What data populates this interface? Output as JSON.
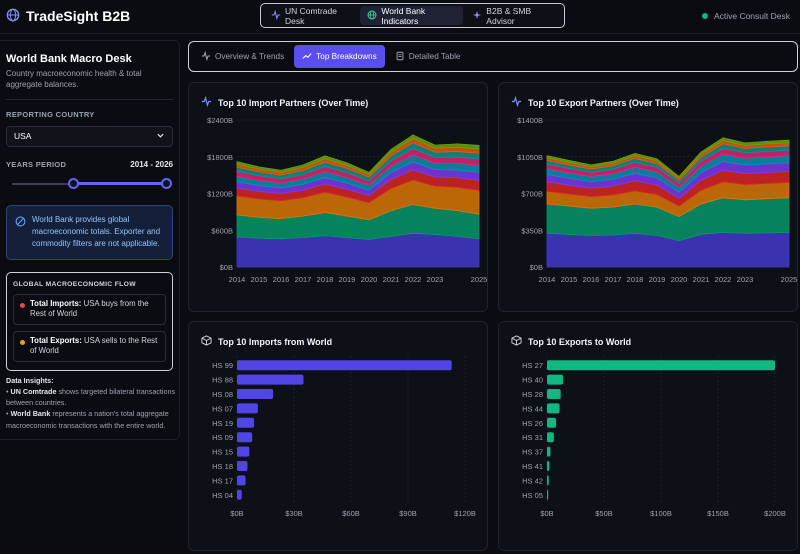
{
  "app": {
    "title": "TradeSight B2B"
  },
  "nav": [
    {
      "label": "UN Comtrade Desk",
      "icon": "pulse-icon",
      "active": false
    },
    {
      "label": "World Bank Indicators",
      "icon": "globe-icon",
      "active": true
    },
    {
      "label": "B2B & SMB Advisor",
      "icon": "sparkle-icon",
      "active": false
    }
  ],
  "status": {
    "label": "Active Consult Desk",
    "color": "#10b981"
  },
  "sidebar": {
    "title": "World Bank Macro Desk",
    "subtitle": "Country macroeconomic health & total aggregate balances.",
    "country_label": "REPORTING COUNTRY",
    "country_value": "USA",
    "period_label": "YEARS PERIOD",
    "period_value": "2014 - 2026",
    "info_text": "World Bank provides global macroeconomic totals. Exporter and commodity filters are not applicable.",
    "flow_title": "GLOBAL MACROECONOMIC FLOW",
    "flow_items": [
      {
        "bold": "Total Imports:",
        "text": " USA buys from the Rest of World",
        "color": "#ef4444"
      },
      {
        "bold": "Total Exports:",
        "text": " USA sells to the Rest of World",
        "color": "#f59e0b"
      }
    ],
    "insights_title": "Data Insights:",
    "insights": [
      {
        "bold": "UN Comtrade",
        "text": " shows targeted bilateral transactions between countries."
      },
      {
        "bold": "World Bank",
        "text": " represents a nation's total aggregate macroeconomic transactions with the entire world."
      }
    ]
  },
  "tabs": [
    {
      "label": "Overview & Trends",
      "icon": "pulse-icon",
      "active": false
    },
    {
      "label": "Top Breakdowns",
      "icon": "trend-icon",
      "active": true
    },
    {
      "label": "Detailed Table",
      "icon": "document-icon",
      "active": false
    }
  ],
  "colors": {
    "accent": "#5b4ef0",
    "import_bar": "#4f46e5",
    "export_bar": "#10b981"
  },
  "chart_data": [
    {
      "type": "area",
      "title": "Top 10 Import Partners (Over Time)",
      "x": [
        2014,
        2015,
        2016,
        2017,
        2018,
        2019,
        2020,
        2021,
        2022,
        2023,
        2024,
        2025
      ],
      "x_ticks": [
        "2014",
        "2015",
        "2016",
        "2017",
        "2018",
        "2019",
        "2020",
        "2021",
        "2022",
        "2023",
        "2025"
      ],
      "ylim": [
        0,
        2400
      ],
      "y_ticks": [
        "$0B",
        "$600B",
        "$1200B",
        "$1800B",
        "$2400B"
      ],
      "stacked": true,
      "series_colors": [
        "#4338ca",
        "#059669",
        "#d97706",
        "#dc2626",
        "#7c3aed",
        "#0891b2",
        "#db2777",
        "#0d9488",
        "#ea580c",
        "#65a30d"
      ],
      "series": [
        {
          "values": [
            490,
            470,
            460,
            480,
            510,
            480,
            450,
            500,
            550,
            530,
            500,
            460
          ]
        },
        {
          "values": [
            360,
            340,
            330,
            350,
            380,
            350,
            320,
            420,
            470,
            430,
            420,
            400
          ]
        },
        {
          "values": [
            310,
            300,
            290,
            300,
            330,
            310,
            280,
            360,
            400,
            360,
            380,
            390
          ]
        },
        {
          "values": [
            130,
            125,
            120,
            125,
            135,
            130,
            115,
            150,
            165,
            150,
            160,
            165
          ]
        },
        {
          "values": [
            100,
            95,
            90,
            95,
            105,
            100,
            90,
            115,
            130,
            120,
            125,
            130
          ]
        },
        {
          "values": [
            90,
            85,
            80,
            85,
            95,
            90,
            80,
            100,
            115,
            105,
            110,
            115
          ]
        },
        {
          "values": [
            80,
            75,
            70,
            75,
            85,
            80,
            70,
            90,
            105,
            95,
            100,
            105
          ]
        },
        {
          "values": [
            70,
            65,
            60,
            65,
            75,
            70,
            60,
            80,
            95,
            85,
            90,
            95
          ]
        },
        {
          "values": [
            50,
            45,
            45,
            50,
            55,
            50,
            45,
            60,
            70,
            65,
            70,
            70
          ]
        },
        {
          "values": [
            40,
            35,
            35,
            40,
            45,
            40,
            35,
            45,
            55,
            50,
            55,
            55
          ]
        }
      ]
    },
    {
      "type": "area",
      "title": "Top 10 Export Partners (Over Time)",
      "x": [
        2014,
        2015,
        2016,
        2017,
        2018,
        2019,
        2020,
        2021,
        2022,
        2023,
        2024,
        2025
      ],
      "x_ticks": [
        "2014",
        "2015",
        "2016",
        "2017",
        "2018",
        "2019",
        "2020",
        "2021",
        "2022",
        "2023",
        "2025"
      ],
      "ylim": [
        0,
        1400
      ],
      "y_ticks": [
        "$0B",
        "$350B",
        "$700B",
        "$1050B",
        "$1400B"
      ],
      "stacked": true,
      "series_colors": [
        "#4338ca",
        "#059669",
        "#d97706",
        "#dc2626",
        "#7c3aed",
        "#0891b2",
        "#db2777",
        "#0d9488",
        "#ea580c",
        "#65a30d"
      ],
      "series": [
        {
          "values": [
            320,
            310,
            300,
            305,
            320,
            300,
            250,
            310,
            330,
            320,
            325,
            330
          ]
        },
        {
          "values": [
            280,
            270,
            260,
            265,
            280,
            270,
            230,
            290,
            330,
            320,
            325,
            330
          ]
        },
        {
          "values": [
            120,
            115,
            110,
            115,
            125,
            120,
            100,
            130,
            150,
            145,
            145,
            145
          ]
        },
        {
          "values": [
            90,
            85,
            80,
            85,
            95,
            90,
            75,
            95,
            110,
            105,
            105,
            105
          ]
        },
        {
          "values": [
            70,
            65,
            62,
            66,
            72,
            70,
            58,
            75,
            85,
            80,
            82,
            82
          ]
        },
        {
          "values": [
            55,
            52,
            50,
            52,
            58,
            55,
            46,
            60,
            70,
            66,
            66,
            67
          ]
        },
        {
          "values": [
            45,
            42,
            40,
            43,
            47,
            45,
            37,
            48,
            55,
            52,
            53,
            53
          ]
        },
        {
          "values": [
            35,
            33,
            31,
            33,
            37,
            35,
            29,
            38,
            44,
            41,
            42,
            42
          ]
        },
        {
          "values": [
            25,
            24,
            22,
            24,
            27,
            25,
            21,
            27,
            31,
            29,
            30,
            30
          ]
        },
        {
          "values": [
            20,
            19,
            18,
            19,
            21,
            20,
            17,
            22,
            25,
            24,
            24,
            24
          ]
        }
      ]
    },
    {
      "type": "bar",
      "orientation": "horizontal",
      "title": "Top 10 Imports from World",
      "categories": [
        "HS 99",
        "HS 88",
        "HS 08",
        "HS 07",
        "HS 19",
        "HS 09",
        "HS 15",
        "HS 18",
        "HS 17",
        "HS 04"
      ],
      "values": [
        113,
        35,
        19,
        11,
        9,
        8,
        6.5,
        5.5,
        4.5,
        2.5
      ],
      "xlim": [
        0,
        120
      ],
      "x_ticks": [
        "$0B",
        "$30B",
        "$60B",
        "$90B",
        "$120B"
      ],
      "color": "#4f46e5"
    },
    {
      "type": "bar",
      "orientation": "horizontal",
      "title": "Top 10 Exports to World",
      "categories": [
        "HS 27",
        "HS 40",
        "HS 28",
        "HS 44",
        "HS 26",
        "HS 31",
        "HS 37",
        "HS 41",
        "HS 42",
        "HS 05"
      ],
      "values": [
        200,
        14,
        12,
        11,
        8,
        6,
        3,
        2,
        1.5,
        1
      ],
      "xlim": [
        0,
        200
      ],
      "x_ticks": [
        "$0B",
        "$50B",
        "$100B",
        "$150B",
        "$200B"
      ],
      "color": "#10b981"
    }
  ]
}
